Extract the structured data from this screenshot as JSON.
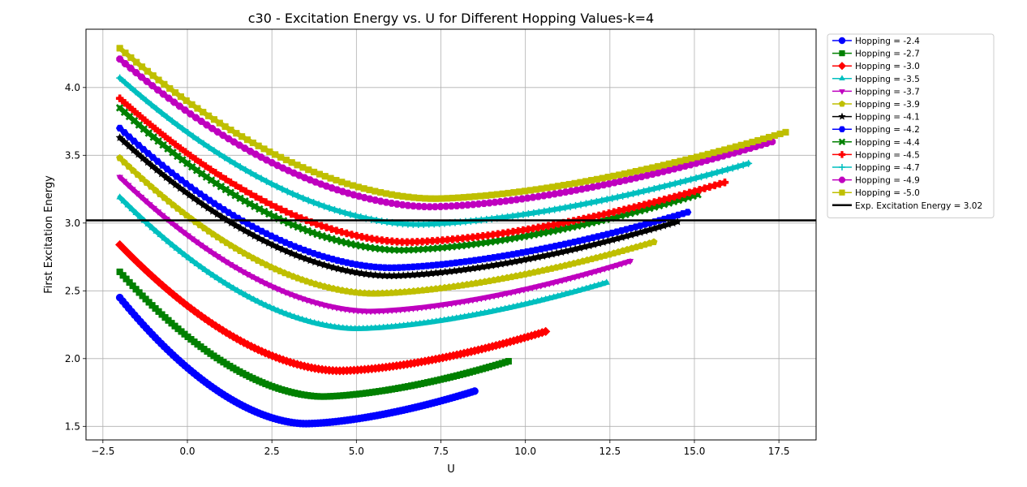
{
  "chart_data": {
    "type": "line",
    "title": "c30 - Excitation Energy vs. U for Different Hopping Values-k=4",
    "xlabel": "U",
    "ylabel": "First Excitation Energy",
    "xlim": [
      -3.0,
      18.6
    ],
    "ylim": [
      1.4,
      4.43
    ],
    "xticks": [
      -2.5,
      0.0,
      2.5,
      5.0,
      7.5,
      10.0,
      12.5,
      15.0,
      17.5
    ],
    "xtick_labels": [
      "−2.5",
      "0.0",
      "2.5",
      "5.0",
      "7.5",
      "10.0",
      "12.5",
      "15.0",
      "17.5"
    ],
    "yticks": [
      1.5,
      2.0,
      2.5,
      3.0,
      3.5,
      4.0
    ],
    "ytick_labels": [
      "1.5",
      "2.0",
      "2.5",
      "3.0",
      "3.5",
      "4.0"
    ],
    "grid": true,
    "legend_position": "outside-right-top",
    "series": [
      {
        "name": "Hopping = -2.4",
        "color": "#0000ff",
        "marker": "circle",
        "x_start": -2.0,
        "x_end": 8.5,
        "y_start": 2.45,
        "x_min": 3.5,
        "y_min": 1.52,
        "y_end": 1.76
      },
      {
        "name": "Hopping = -2.7",
        "color": "#008000",
        "marker": "square",
        "x_start": -2.0,
        "x_end": 9.5,
        "y_start": 2.64,
        "x_min": 4.0,
        "y_min": 1.72,
        "y_end": 1.98
      },
      {
        "name": "Hopping = -3.0",
        "color": "#ff0000",
        "marker": "diamond",
        "x_start": -2.0,
        "x_end": 10.6,
        "y_start": 2.84,
        "x_min": 4.5,
        "y_min": 1.91,
        "y_end": 2.2
      },
      {
        "name": "Hopping = -3.5",
        "color": "#00bfbf",
        "marker": "triangle-up",
        "x_start": -2.0,
        "x_end": 12.4,
        "y_start": 3.19,
        "x_min": 5.0,
        "y_min": 2.22,
        "y_end": 2.56
      },
      {
        "name": "Hopping = -3.7",
        "color": "#bf00bf",
        "marker": "triangle-down",
        "x_start": -2.0,
        "x_end": 13.1,
        "y_start": 3.34,
        "x_min": 5.4,
        "y_min": 2.35,
        "y_end": 2.72
      },
      {
        "name": "Hopping = -3.9",
        "color": "#bfbf00",
        "marker": "pentagon",
        "x_start": -2.0,
        "x_end": 13.8,
        "y_start": 3.48,
        "x_min": 5.5,
        "y_min": 2.48,
        "y_end": 2.86
      },
      {
        "name": "Hopping = -4.1",
        "color": "#000000",
        "marker": "star",
        "x_start": -2.0,
        "x_end": 14.5,
        "y_start": 3.63,
        "x_min": 6.0,
        "y_min": 2.61,
        "y_end": 3.01
      },
      {
        "name": "Hopping = -4.2",
        "color": "#0000ff",
        "marker": "hexagon",
        "x_start": -2.0,
        "x_end": 14.8,
        "y_start": 3.7,
        "x_min": 6.0,
        "y_min": 2.67,
        "y_end": 3.08
      },
      {
        "name": "Hopping = -4.4",
        "color": "#008000",
        "marker": "x-filled",
        "x_start": -2.0,
        "x_end": 15.1,
        "y_start": 3.85,
        "x_min": 6.3,
        "y_min": 2.8,
        "y_end": 3.21
      },
      {
        "name": "Hopping = -4.5",
        "color": "#ff0000",
        "marker": "plus-filled",
        "x_start": -2.0,
        "x_end": 15.9,
        "y_start": 3.92,
        "x_min": 6.5,
        "y_min": 2.86,
        "y_end": 3.3
      },
      {
        "name": "Hopping = -4.7",
        "color": "#00bfbf",
        "marker": "plus",
        "x_start": -2.0,
        "x_end": 16.6,
        "y_start": 4.07,
        "x_min": 6.8,
        "y_min": 2.99,
        "y_end": 3.44
      },
      {
        "name": "Hopping = -4.9",
        "color": "#bf00bf",
        "marker": "octagon",
        "x_start": -2.0,
        "x_end": 17.3,
        "y_start": 4.21,
        "x_min": 7.2,
        "y_min": 3.12,
        "y_end": 3.6
      },
      {
        "name": "Hopping = -5.0",
        "color": "#bfbf00",
        "marker": "square",
        "x_start": -2.0,
        "x_end": 17.7,
        "y_start": 4.29,
        "x_min": 7.3,
        "y_min": 3.18,
        "y_end": 3.67
      }
    ],
    "reference_line": {
      "name": "Exp. Excitation Energy = 3.02",
      "y": 3.02,
      "color": "#000000"
    }
  }
}
